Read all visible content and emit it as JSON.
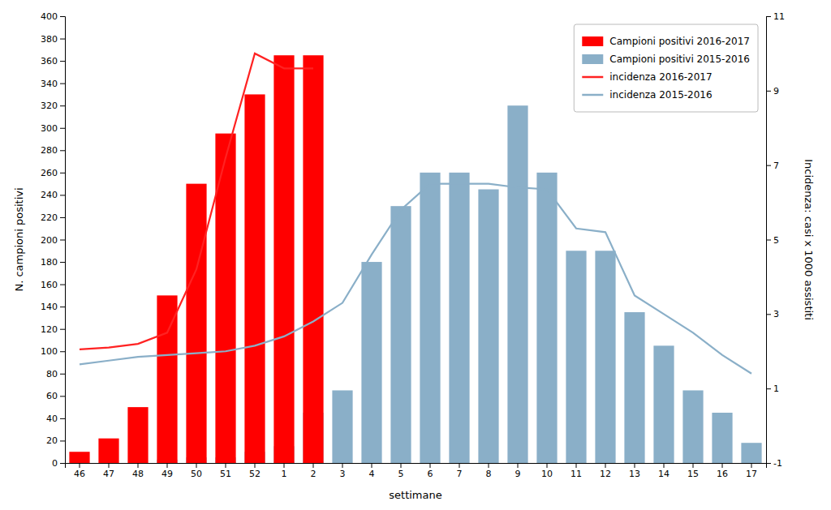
{
  "chart_data": {
    "type": "bar",
    "xlabel": "settimane",
    "ylabel": "N. campioni positivi",
    "y2label": "Incidenza: casi x 1000 assistiti",
    "categories": [
      "46",
      "47",
      "48",
      "49",
      "50",
      "51",
      "52",
      "1",
      "2",
      "3",
      "4",
      "5",
      "6",
      "7",
      "8",
      "9",
      "10",
      "11",
      "12",
      "13",
      "14",
      "15",
      "16",
      "17"
    ],
    "series": [
      {
        "name": "Campioni positivi 2016-2017",
        "type": "bar",
        "color": "#ff0000",
        "values": [
          10,
          22,
          50,
          150,
          250,
          295,
          330,
          365,
          365,
          0,
          0,
          0,
          0,
          0,
          0,
          0,
          0,
          0,
          0,
          0,
          0,
          0,
          0,
          0
        ]
      },
      {
        "name": "Campioni positivi 2015-2016",
        "type": "bar",
        "color": "#8aafc8",
        "values": [
          0,
          0,
          0,
          3,
          5,
          5,
          10,
          15,
          45,
          65,
          180,
          230,
          260,
          260,
          245,
          320,
          260,
          190,
          190,
          135,
          105,
          65,
          45,
          18
        ]
      },
      {
        "name": "incidenza 2016-2017",
        "type": "line",
        "axis": "y2",
        "color": "#ff2222",
        "values": [
          2.05,
          2.1,
          2.2,
          2.5,
          4.2,
          7.2,
          10.0,
          9.6,
          9.6,
          null,
          null,
          null,
          null,
          null,
          null,
          null,
          null,
          null,
          null,
          null,
          null,
          null,
          null,
          null
        ]
      },
      {
        "name": "incidenza 2015-2016",
        "type": "line",
        "axis": "y2",
        "color": "#8aafc8",
        "values": [
          1.65,
          1.75,
          1.85,
          1.9,
          1.95,
          2.0,
          2.15,
          2.4,
          2.8,
          3.3,
          4.6,
          5.8,
          6.5,
          6.5,
          6.5,
          6.4,
          6.35,
          5.3,
          5.2,
          3.5,
          3.0,
          2.5,
          1.9,
          1.4
        ]
      }
    ],
    "ylim": [
      0,
      400
    ],
    "yticks": [
      0,
      20,
      40,
      60,
      80,
      100,
      120,
      140,
      160,
      180,
      200,
      220,
      240,
      260,
      280,
      300,
      320,
      340,
      360,
      380,
      400
    ],
    "y2lim": [
      -1,
      11
    ],
    "y2ticks": [
      -1,
      1,
      3,
      5,
      7,
      9,
      11
    ],
    "legend": "upper right",
    "grid": false
  }
}
